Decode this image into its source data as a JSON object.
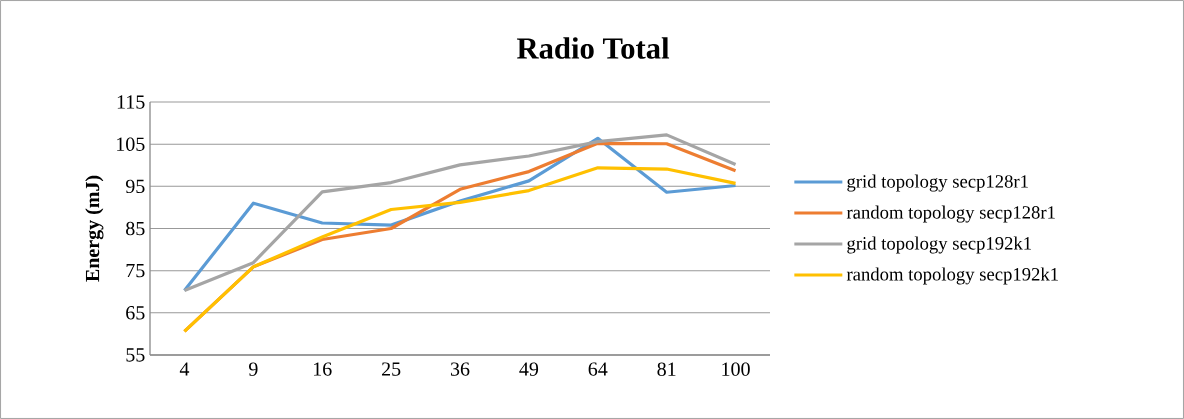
{
  "chart_data": {
    "type": "line",
    "title": "Radio Total",
    "ylabel": "Energy (mJ)",
    "categories": [
      "4",
      "9",
      "16",
      "25",
      "36",
      "49",
      "64",
      "81",
      "100"
    ],
    "series": [
      {
        "name": "grid topology secp128r1",
        "color": "#5b9bd5",
        "values": [
          70.3,
          91.0,
          86.3,
          85.8,
          91.5,
          96.3,
          106.4,
          93.6,
          95.2
        ]
      },
      {
        "name": "random topology secp128r1",
        "color": "#ed7d31",
        "values": [
          60.6,
          75.9,
          82.4,
          85.0,
          94.3,
          98.5,
          105.2,
          105.1,
          98.7
        ]
      },
      {
        "name": "grid topology secp192k1",
        "color": "#a5a5a5",
        "values": [
          70.3,
          76.9,
          93.7,
          95.9,
          100.1,
          102.2,
          105.6,
          107.2,
          100.2
        ]
      },
      {
        "name": "random topology secp192k1",
        "color": "#ffc000",
        "values": [
          60.6,
          75.9,
          83.0,
          89.5,
          91.2,
          94.0,
          99.4,
          99.1,
          95.7
        ]
      }
    ],
    "ylim": [
      55,
      115
    ],
    "yticks": [
      55,
      65,
      75,
      85,
      95,
      105,
      115
    ],
    "grid": "y",
    "legend": "right"
  }
}
